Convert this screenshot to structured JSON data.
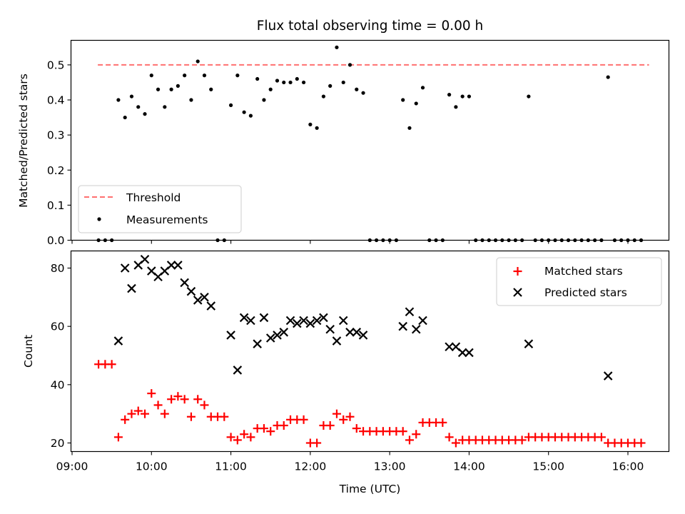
{
  "chart_data": [
    {
      "type": "scatter",
      "title": "Flux total observing time = 0.00 h",
      "xlabel": "",
      "ylabel": "Matched/Predicted stars",
      "xlim": [
        "09:00",
        "16:30"
      ],
      "ylim": [
        0,
        0.57
      ],
      "yticks": [
        0.0,
        0.1,
        0.2,
        0.3,
        0.4,
        0.5
      ],
      "ytick_labels": [
        "0.0",
        "0.1",
        "0.2",
        "0.3",
        "0.4",
        "0.5"
      ],
      "legend_position": "lower-left",
      "threshold": {
        "name": "Threshold",
        "value": 0.5,
        "x_range": [
          "09:20",
          "16:10"
        ],
        "color": "#ff7070",
        "style": "dashed"
      },
      "series": [
        {
          "name": "Measurements",
          "marker": "dot",
          "color": "#000000",
          "points": [
            [
              "09:20",
              0.0
            ],
            [
              "09:25",
              0.0
            ],
            [
              "09:30",
              0.0
            ],
            [
              "09:35",
              0.4
            ],
            [
              "09:40",
              0.35
            ],
            [
              "09:45",
              0.41
            ],
            [
              "09:50",
              0.38
            ],
            [
              "09:55",
              0.36
            ],
            [
              "10:00",
              0.47
            ],
            [
              "10:05",
              0.43
            ],
            [
              "10:10",
              0.38
            ],
            [
              "10:15",
              0.43
            ],
            [
              "10:20",
              0.44
            ],
            [
              "10:25",
              0.47
            ],
            [
              "10:30",
              0.4
            ],
            [
              "10:35",
              0.51
            ],
            [
              "10:40",
              0.47
            ],
            [
              "10:45",
              0.43
            ],
            [
              "10:50",
              0.0
            ],
            [
              "10:55",
              0.0
            ],
            [
              "11:00",
              0.385
            ],
            [
              "11:05",
              0.47
            ],
            [
              "11:10",
              0.365
            ],
            [
              "11:15",
              0.355
            ],
            [
              "11:20",
              0.46
            ],
            [
              "11:25",
              0.4
            ],
            [
              "11:30",
              0.43
            ],
            [
              "11:35",
              0.455
            ],
            [
              "11:40",
              0.45
            ],
            [
              "11:45",
              0.45
            ],
            [
              "11:50",
              0.46
            ],
            [
              "11:55",
              0.45
            ],
            [
              "12:00",
              0.33
            ],
            [
              "12:05",
              0.32
            ],
            [
              "12:10",
              0.41
            ],
            [
              "12:15",
              0.44
            ],
            [
              "12:20",
              0.55
            ],
            [
              "12:25",
              0.45
            ],
            [
              "12:30",
              0.5
            ],
            [
              "12:35",
              0.43
            ],
            [
              "12:40",
              0.42
            ],
            [
              "12:45",
              0.0
            ],
            [
              "12:50",
              0.0
            ],
            [
              "12:55",
              0.0
            ],
            [
              "13:00",
              0.0
            ],
            [
              "13:05",
              0.0
            ],
            [
              "13:10",
              0.4
            ],
            [
              "13:15",
              0.32
            ],
            [
              "13:20",
              0.39
            ],
            [
              "13:25",
              0.435
            ],
            [
              "13:30",
              0.0
            ],
            [
              "13:35",
              0.0
            ],
            [
              "13:40",
              0.0
            ],
            [
              "13:45",
              0.415
            ],
            [
              "13:50",
              0.38
            ],
            [
              "13:55",
              0.41
            ],
            [
              "14:00",
              0.41
            ],
            [
              "14:05",
              0.0
            ],
            [
              "14:10",
              0.0
            ],
            [
              "14:15",
              0.0
            ],
            [
              "14:20",
              0.0
            ],
            [
              "14:25",
              0.0
            ],
            [
              "14:30",
              0.0
            ],
            [
              "14:35",
              0.0
            ],
            [
              "14:40",
              0.0
            ],
            [
              "14:45",
              0.41
            ],
            [
              "14:50",
              0.0
            ],
            [
              "14:55",
              0.0
            ],
            [
              "15:00",
              0.0
            ],
            [
              "15:05",
              0.0
            ],
            [
              "15:10",
              0.0
            ],
            [
              "15:15",
              0.0
            ],
            [
              "15:20",
              0.0
            ],
            [
              "15:25",
              0.0
            ],
            [
              "15:30",
              0.0
            ],
            [
              "15:35",
              0.0
            ],
            [
              "15:40",
              0.0
            ],
            [
              "15:45",
              0.465
            ],
            [
              "15:50",
              0.0
            ],
            [
              "15:55",
              0.0
            ],
            [
              "16:00",
              0.0
            ],
            [
              "16:05",
              0.0
            ],
            [
              "16:10",
              0.0
            ]
          ]
        }
      ]
    },
    {
      "type": "scatter",
      "title": "",
      "xlabel": "Time (UTC)",
      "ylabel": "Count",
      "xlim": [
        "09:00",
        "16:30"
      ],
      "ylim": [
        16.5,
        86
      ],
      "xticks": [
        "09:00",
        "10:00",
        "11:00",
        "12:00",
        "13:00",
        "14:00",
        "15:00",
        "16:00"
      ],
      "yticks": [
        20,
        40,
        60,
        80
      ],
      "ytick_labels": [
        "20",
        "40",
        "60",
        "80"
      ],
      "legend_position": "top-right",
      "series": [
        {
          "name": "Matched stars",
          "marker": "plus",
          "color": "#ff0000",
          "points": [
            [
              "09:20",
              47
            ],
            [
              "09:25",
              47
            ],
            [
              "09:30",
              47
            ],
            [
              "09:35",
              22
            ],
            [
              "09:40",
              28
            ],
            [
              "09:45",
              30
            ],
            [
              "09:50",
              31
            ],
            [
              "09:55",
              30
            ],
            [
              "10:00",
              37
            ],
            [
              "10:05",
              33
            ],
            [
              "10:10",
              30
            ],
            [
              "10:15",
              35
            ],
            [
              "10:20",
              36
            ],
            [
              "10:25",
              35
            ],
            [
              "10:30",
              29
            ],
            [
              "10:35",
              35
            ],
            [
              "10:40",
              33
            ],
            [
              "10:45",
              29
            ],
            [
              "10:50",
              29
            ],
            [
              "10:55",
              29
            ],
            [
              "11:00",
              22
            ],
            [
              "11:05",
              21
            ],
            [
              "11:10",
              23
            ],
            [
              "11:15",
              22
            ],
            [
              "11:20",
              25
            ],
            [
              "11:25",
              25
            ],
            [
              "11:30",
              24
            ],
            [
              "11:35",
              26
            ],
            [
              "11:40",
              26
            ],
            [
              "11:45",
              28
            ],
            [
              "11:50",
              28
            ],
            [
              "11:55",
              28
            ],
            [
              "12:00",
              20
            ],
            [
              "12:05",
              20
            ],
            [
              "12:10",
              26
            ],
            [
              "12:15",
              26
            ],
            [
              "12:20",
              30
            ],
            [
              "12:25",
              28
            ],
            [
              "12:30",
              29
            ],
            [
              "12:35",
              25
            ],
            [
              "12:40",
              24
            ],
            [
              "12:45",
              24
            ],
            [
              "12:50",
              24
            ],
            [
              "12:55",
              24
            ],
            [
              "13:00",
              24
            ],
            [
              "13:05",
              24
            ],
            [
              "13:10",
              24
            ],
            [
              "13:15",
              21
            ],
            [
              "13:20",
              23
            ],
            [
              "13:25",
              27
            ],
            [
              "13:30",
              27
            ],
            [
              "13:35",
              27
            ],
            [
              "13:40",
              27
            ],
            [
              "13:45",
              22
            ],
            [
              "13:50",
              20
            ],
            [
              "13:55",
              21
            ],
            [
              "14:00",
              21
            ],
            [
              "14:05",
              21
            ],
            [
              "14:10",
              21
            ],
            [
              "14:15",
              21
            ],
            [
              "14:20",
              21
            ],
            [
              "14:25",
              21
            ],
            [
              "14:30",
              21
            ],
            [
              "14:35",
              21
            ],
            [
              "14:40",
              21
            ],
            [
              "14:45",
              22
            ],
            [
              "14:50",
              22
            ],
            [
              "14:55",
              22
            ],
            [
              "15:00",
              22
            ],
            [
              "15:05",
              22
            ],
            [
              "15:10",
              22
            ],
            [
              "15:15",
              22
            ],
            [
              "15:20",
              22
            ],
            [
              "15:25",
              22
            ],
            [
              "15:30",
              22
            ],
            [
              "15:35",
              22
            ],
            [
              "15:40",
              22
            ],
            [
              "15:45",
              20
            ],
            [
              "15:50",
              20
            ],
            [
              "15:55",
              20
            ],
            [
              "16:00",
              20
            ],
            [
              "16:05",
              20
            ],
            [
              "16:10",
              20
            ]
          ]
        },
        {
          "name": "Predicted stars",
          "marker": "x",
          "color": "#000000",
          "points": [
            [
              "09:35",
              55
            ],
            [
              "09:40",
              80
            ],
            [
              "09:45",
              73
            ],
            [
              "09:50",
              81
            ],
            [
              "09:55",
              83
            ],
            [
              "10:00",
              79
            ],
            [
              "10:05",
              77
            ],
            [
              "10:10",
              79
            ],
            [
              "10:15",
              81
            ],
            [
              "10:20",
              81
            ],
            [
              "10:25",
              75
            ],
            [
              "10:30",
              72
            ],
            [
              "10:35",
              69
            ],
            [
              "10:40",
              70
            ],
            [
              "10:45",
              67
            ],
            [
              "11:00",
              57
            ],
            [
              "11:05",
              45
            ],
            [
              "11:10",
              63
            ],
            [
              "11:15",
              62
            ],
            [
              "11:20",
              54
            ],
            [
              "11:25",
              63
            ],
            [
              "11:30",
              56
            ],
            [
              "11:35",
              57
            ],
            [
              "11:40",
              58
            ],
            [
              "11:45",
              62
            ],
            [
              "11:50",
              61
            ],
            [
              "11:55",
              62
            ],
            [
              "12:00",
              61
            ],
            [
              "12:05",
              62
            ],
            [
              "12:10",
              63
            ],
            [
              "12:15",
              59
            ],
            [
              "12:20",
              55
            ],
            [
              "12:25",
              62
            ],
            [
              "12:30",
              58
            ],
            [
              "12:35",
              58
            ],
            [
              "12:40",
              57
            ],
            [
              "13:10",
              60
            ],
            [
              "13:15",
              65
            ],
            [
              "13:20",
              59
            ],
            [
              "13:25",
              62
            ],
            [
              "13:45",
              53
            ],
            [
              "13:50",
              53
            ],
            [
              "13:55",
              51
            ],
            [
              "14:00",
              51
            ],
            [
              "14:45",
              54
            ],
            [
              "15:45",
              43
            ]
          ]
        }
      ]
    }
  ]
}
